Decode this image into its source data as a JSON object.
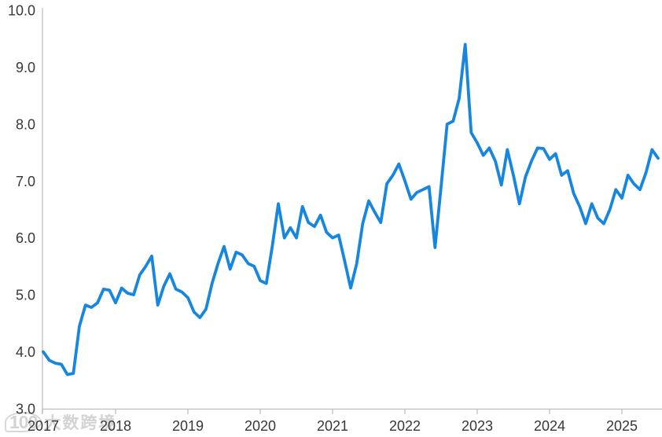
{
  "watermark": {
    "logo": "100",
    "brand": "大数跨境"
  },
  "chart_data": {
    "type": "line",
    "title": "",
    "xlabel": "",
    "ylabel": "",
    "frequency": "monthly",
    "start_month": "2017-01",
    "end_month": "2025-07",
    "x_tick_labels": [
      "2017",
      "2018",
      "2019",
      "2020",
      "2021",
      "2022",
      "2023",
      "2024",
      "2025"
    ],
    "y_tick_labels": [
      "3.0",
      "4.0",
      "5.0",
      "6.0",
      "7.0",
      "8.0",
      "9.0",
      "10.0"
    ],
    "y_ticks": [
      3.0,
      4.0,
      5.0,
      6.0,
      7.0,
      8.0,
      9.0,
      10.0
    ],
    "ylim": [
      3.0,
      10.0
    ],
    "grid": false,
    "legend": "none",
    "line_color": "#1786DF",
    "axis_color": "#bfbfbf",
    "label_color": "#383838",
    "series": [
      {
        "name": "",
        "values": [
          4.0,
          3.85,
          3.8,
          3.78,
          3.6,
          3.62,
          4.45,
          4.82,
          4.78,
          4.86,
          5.1,
          5.08,
          4.86,
          5.12,
          5.03,
          5.0,
          5.35,
          5.5,
          5.68,
          4.82,
          5.15,
          5.37,
          5.1,
          5.05,
          4.95,
          4.7,
          4.6,
          4.75,
          5.2,
          5.55,
          5.85,
          5.45,
          5.75,
          5.7,
          5.55,
          5.5,
          5.25,
          5.2,
          5.85,
          6.6,
          6.0,
          6.18,
          6.0,
          6.55,
          6.27,
          6.2,
          6.4,
          6.1,
          6.0,
          6.05,
          5.6,
          5.12,
          5.55,
          6.25,
          6.65,
          6.45,
          6.27,
          6.95,
          7.1,
          7.3,
          7.0,
          6.68,
          6.8,
          6.85,
          6.9,
          5.83,
          6.9,
          8.0,
          8.05,
          8.45,
          9.4,
          7.85,
          7.67,
          7.45,
          7.58,
          7.35,
          6.93,
          7.55,
          7.1,
          6.6,
          7.07,
          7.35,
          7.58,
          7.57,
          7.38,
          7.48,
          7.1,
          7.18,
          6.78,
          6.55,
          6.25,
          6.6,
          6.35,
          6.25,
          6.5,
          6.85,
          6.7,
          7.1,
          6.95,
          6.85,
          7.15,
          7.55,
          7.4
        ]
      }
    ]
  }
}
